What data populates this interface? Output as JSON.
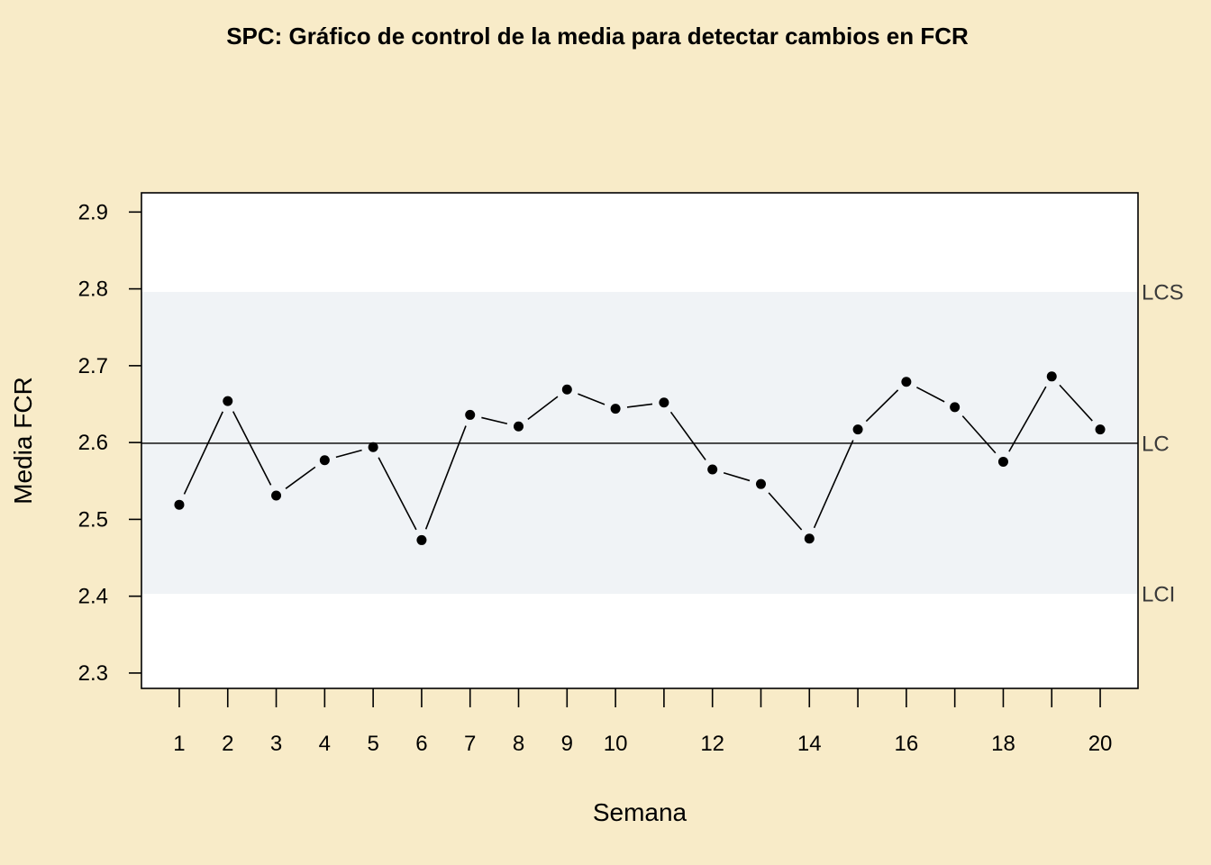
{
  "chart_data": {
    "type": "line",
    "title": "SPC: Gráfico de control de la media para detectar cambios en FCR",
    "xlabel": "Semana",
    "ylabel": "Media FCR",
    "x": [
      1,
      2,
      3,
      4,
      5,
      6,
      7,
      8,
      9,
      10,
      11,
      12,
      13,
      14,
      15,
      16,
      17,
      18,
      19,
      20
    ],
    "x_tick_labels": [
      "1",
      "2",
      "3",
      "4",
      "5",
      "6",
      "7",
      "8",
      "9",
      "10",
      "",
      "12",
      "",
      "14",
      "",
      "16",
      "",
      "18",
      "",
      "20"
    ],
    "series": [
      {
        "values": [
          2.519,
          2.654,
          2.531,
          2.577,
          2.594,
          2.473,
          2.636,
          2.621,
          2.669,
          2.644,
          2.652,
          2.565,
          2.546,
          2.475,
          2.617,
          2.679,
          2.646,
          2.575,
          2.686,
          2.617
        ]
      }
    ],
    "ylim": [
      2.28,
      2.925
    ],
    "xlim": [
      0.22,
      20.78
    ],
    "y_ticks": [
      2.3,
      2.4,
      2.5,
      2.6,
      2.7,
      2.8,
      2.9
    ],
    "y_tick_labels": [
      "2.3",
      "2.4",
      "2.5",
      "2.6",
      "2.7",
      "2.8",
      "2.9"
    ],
    "control_limits": {
      "LCS": {
        "label": "LCS",
        "value": 2.796
      },
      "LC": {
        "label": "LC",
        "value": 2.599
      },
      "LCI": {
        "label": "LCI",
        "value": 2.403
      }
    },
    "grid": false,
    "legend": "none",
    "colors": {
      "background": "#f8ebc8",
      "plot_background": "#ffffff",
      "control_band": "#f0f3f6",
      "series": "#000000",
      "limit_label": "#3a3a3a"
    }
  }
}
